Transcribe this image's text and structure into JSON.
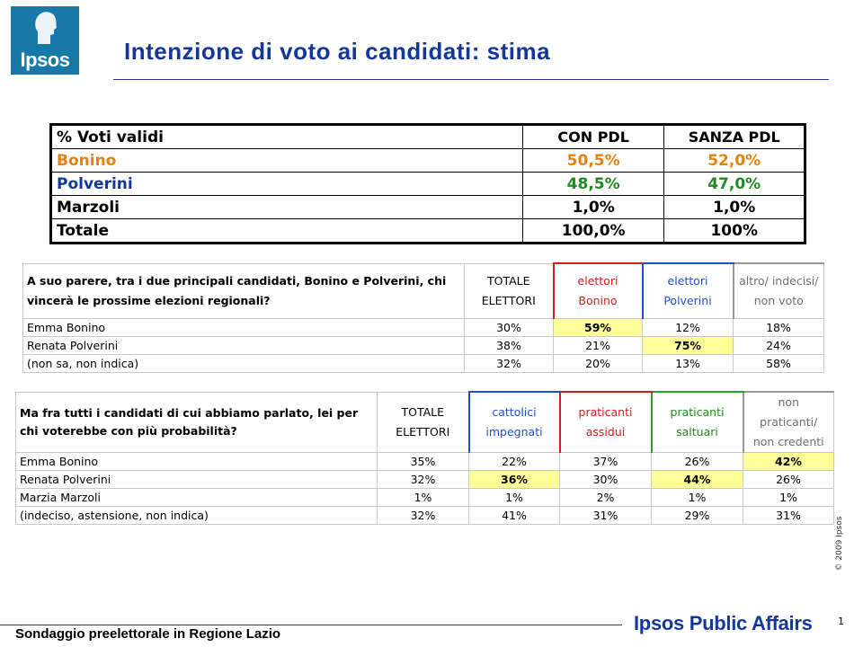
{
  "logo": {
    "text": "Ipsos"
  },
  "title": "Intenzione di voto ai candidati: stima",
  "table1": {
    "headers": [
      "% Voti validi",
      "CON PDL",
      "SANZA PDL"
    ],
    "rows": [
      {
        "name": "Bonino",
        "con": "50,5%",
        "senza": "52,0%",
        "color": "#e8800a"
      },
      {
        "name": "Polverini",
        "con": "48,5%",
        "senza": "47,0%",
        "color": "#1f8a1f"
      },
      {
        "name": "Marzoli",
        "con": "1,0%",
        "senza": "1,0%",
        "color": "#000000"
      },
      {
        "name": "Totale",
        "con": "100,0%",
        "senza": "100%",
        "color": "#000000"
      }
    ]
  },
  "table2": {
    "question": "A suo parere, tra i due principali candidati, Bonino e Polverini, chi vincerà le prossime elezioni regionali?",
    "columns": [
      "TOTALE ELETTORI",
      "elettori Bonino",
      "elettori Polverini",
      "altro/ indecisi/ non voto"
    ],
    "rows": [
      {
        "label": "Emma Bonino",
        "values": [
          "30%",
          "59%",
          "12%",
          "18%"
        ]
      },
      {
        "label": "Renata Polverini",
        "values": [
          "38%",
          "21%",
          "75%",
          "24%"
        ]
      },
      {
        "label": "(non sa, non indica)",
        "values": [
          "32%",
          "20%",
          "13%",
          "58%"
        ]
      }
    ]
  },
  "table3": {
    "question": "Ma fra tutti i candidati di cui abbiamo parlato, lei per chi voterebbe con più probabilità?",
    "columns": [
      "TOTALE ELETTORI",
      "cattolici impegnati",
      "praticanti assidui",
      "praticanti saltuari",
      "non praticanti/ non credenti"
    ],
    "rows": [
      {
        "label": "Emma Bonino",
        "values": [
          "35%",
          "22%",
          "37%",
          "26%",
          "42%"
        ]
      },
      {
        "label": "Renata Polverini",
        "values": [
          "32%",
          "36%",
          "30%",
          "44%",
          "26%"
        ]
      },
      {
        "label": "Marzia Marzoli",
        "values": [
          "1%",
          "1%",
          "2%",
          "1%",
          "1%"
        ]
      },
      {
        "label": "(indeciso, astensione, non indica)",
        "values": [
          "32%",
          "41%",
          "31%",
          "29%",
          "31%"
        ]
      }
    ]
  },
  "copyright": "© 2009 Ipsos",
  "footer": {
    "survey": "Sondaggio preelettorale in Regione Lazio",
    "brand": "Ipsos Public Affairs",
    "page": "1"
  }
}
